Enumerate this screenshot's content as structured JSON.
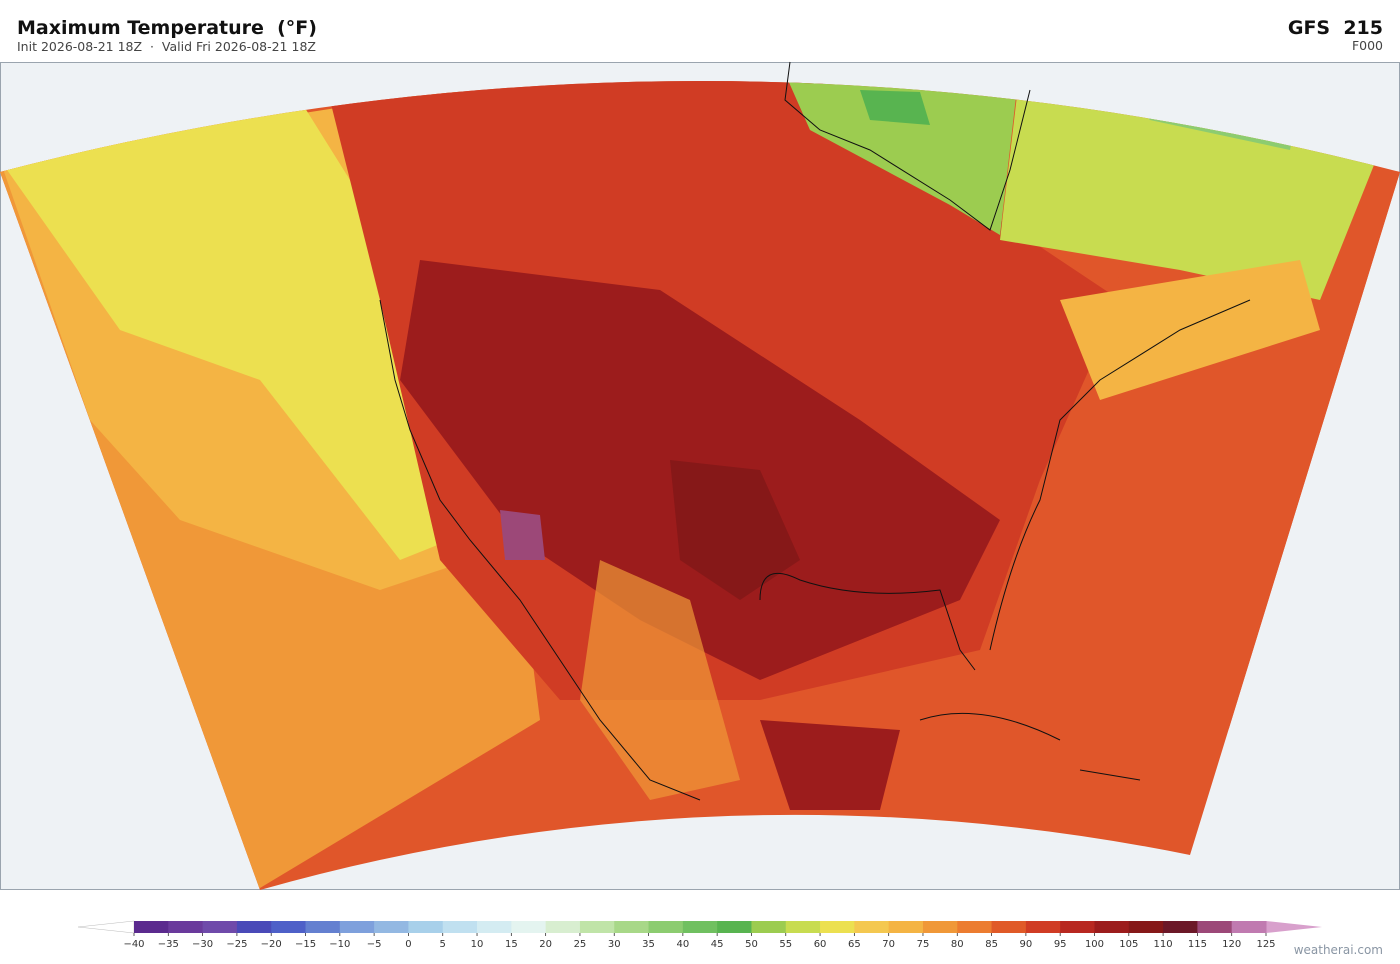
{
  "header": {
    "title": "Maximum Temperature  (°F)",
    "subtitle": "Init 2026-08-21 18Z  ·  Valid Fri 2026-08-21 18Z",
    "model": "GFS  215",
    "forecast_hour": "F000"
  },
  "colorbar": {
    "ticks": [
      "−40",
      "−35",
      "−30",
      "−25",
      "−20",
      "−15",
      "−10",
      "−5",
      "0",
      "5",
      "10",
      "15",
      "20",
      "25",
      "30",
      "35",
      "40",
      "45",
      "50",
      "55",
      "60",
      "65",
      "70",
      "75",
      "80",
      "85",
      "90",
      "95",
      "100",
      "105",
      "110",
      "115",
      "120",
      "125"
    ],
    "colors": [
      "#5b2a8e",
      "#6a3a9c",
      "#6f4aaa",
      "#4a4ab8",
      "#4e60c8",
      "#6480d0",
      "#7ea0dc",
      "#93b8e2",
      "#a8d0ea",
      "#c0e0f0",
      "#d4ecf2",
      "#e4f4f0",
      "#d8eed0",
      "#c0e4a8",
      "#a8d888",
      "#8ccc70",
      "#70c060",
      "#58b450",
      "#9ccc50",
      "#c8dc50",
      "#ece050",
      "#f4c850",
      "#f4b444",
      "#f09838",
      "#ec7c30",
      "#e05a28",
      "#d03c24",
      "#b82820",
      "#9c1c1c",
      "#861818",
      "#6c1828",
      "#9c4878",
      "#c07ab0"
    ],
    "under_color": "#ffffff",
    "over_color": "#d8a0cc"
  },
  "watermark": "weatherai.com"
}
